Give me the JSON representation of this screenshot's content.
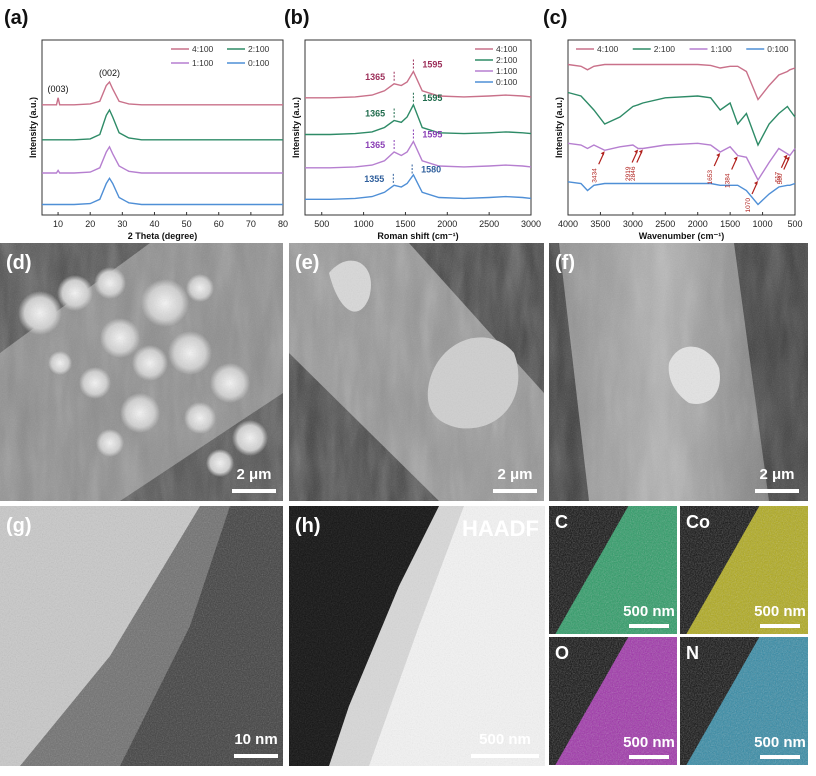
{
  "chart_data": [
    {
      "type": "line",
      "panel_label": "(a)",
      "x_label": "2 Theta (degree)",
      "y_label": "Intensity (a.u.)",
      "xlim": [
        5,
        80
      ],
      "xticks": [
        10,
        20,
        30,
        40,
        50,
        60,
        70,
        80
      ],
      "ylim": [
        0,
        100
      ],
      "legend": "upper right",
      "legend_columns": 2,
      "x": [
        5,
        8,
        9.5,
        10,
        10.5,
        12,
        15,
        20,
        23,
        25,
        26,
        27,
        29,
        32,
        36,
        40,
        50,
        60,
        70,
        80
      ],
      "series": [
        {
          "name": "4:100",
          "color": "#c9718a",
          "values": [
            63,
            63,
            63,
            67,
            63,
            63,
            63,
            63.5,
            65,
            74,
            76,
            72,
            65,
            63.5,
            63,
            63,
            63,
            63,
            63,
            63
          ]
        },
        {
          "name": "2:100",
          "color": "#2e8b67",
          "values": [
            43,
            43,
            43,
            43,
            43,
            43,
            43,
            43.5,
            46,
            57,
            60,
            56,
            47,
            44,
            43,
            43,
            43,
            43,
            43,
            43
          ]
        },
        {
          "name": "1:100",
          "color": "#b67fd0",
          "values": [
            24,
            24,
            24,
            25.5,
            24,
            24,
            24,
            24.5,
            27,
            36,
            39,
            35,
            28,
            25,
            24,
            24,
            24,
            24,
            24,
            24
          ]
        },
        {
          "name": "0:100",
          "color": "#4f8fd6",
          "values": [
            6,
            6,
            6,
            6,
            6,
            6,
            6,
            6.5,
            9,
            18,
            21,
            18,
            10,
            7,
            6,
            6,
            6,
            6,
            6,
            6
          ]
        }
      ],
      "annotations": [
        {
          "text": "(003)",
          "x": 10
        },
        {
          "text": "(002)",
          "x": 26
        }
      ]
    },
    {
      "type": "line",
      "panel_label": "(b)",
      "x_label": "Roman shift (cm⁻¹)",
      "y_label": "Intensity (a.u.)",
      "xlim": [
        300,
        3000
      ],
      "xticks": [
        500,
        1000,
        1500,
        2000,
        2500,
        3000
      ],
      "ylim": [
        0,
        100
      ],
      "legend": "upper right",
      "legend_columns": 1,
      "x": [
        300,
        600,
        900,
        1100,
        1250,
        1365,
        1450,
        1520,
        1595,
        1700,
        1900,
        2200,
        2500,
        2700,
        2900,
        3000
      ],
      "series": [
        {
          "name": "4:100",
          "color": "#c9718a",
          "values": [
            67,
            67,
            67.5,
            68.5,
            71,
            75,
            74,
            76,
            82,
            71,
            68,
            67.5,
            68,
            68.5,
            68,
            67.5
          ],
          "peak_labels": [
            {
              "text": "1365",
              "x": 1365
            },
            {
              "text": "1595",
              "x": 1595
            }
          ],
          "label_color": "#9c2f5a"
        },
        {
          "name": "2:100",
          "color": "#2e8b67",
          "values": [
            46,
            46,
            46.5,
            47.5,
            50,
            54,
            53,
            56,
            63,
            50,
            47,
            46.5,
            47,
            47.5,
            47,
            46.5
          ],
          "peak_labels": [
            {
              "text": "1365",
              "x": 1365
            },
            {
              "text": "1595",
              "x": 1595
            }
          ],
          "label_color": "#1f6b4c"
        },
        {
          "name": "1:100",
          "color": "#b67fd0",
          "values": [
            27,
            27,
            27.5,
            28.5,
            31,
            36,
            34,
            36,
            42,
            31,
            28,
            27.5,
            28,
            28.5,
            28,
            27.5
          ],
          "peak_labels": [
            {
              "text": "1365",
              "x": 1365
            },
            {
              "text": "1595",
              "x": 1595
            }
          ],
          "label_color": "#8a3fb5"
        },
        {
          "name": "0:100",
          "color": "#4f8fd6",
          "values": [
            9,
            9,
            9.5,
            10.5,
            13,
            17,
            16,
            18,
            23,
            13,
            10,
            9.5,
            10,
            10.5,
            10,
            9.5
          ],
          "peak_labels": [
            {
              "text": "1355",
              "x": 1355
            },
            {
              "text": "1580",
              "x": 1580
            }
          ],
          "label_color": "#2f5f9c"
        }
      ]
    },
    {
      "type": "line",
      "panel_label": "(c)",
      "x_label": "Wavenumber (cm⁻¹)",
      "y_label": "Intensity (a.u.)",
      "xlim": [
        4000,
        500
      ],
      "xticks": [
        4000,
        3500,
        3000,
        2500,
        2000,
        1500,
        1000,
        500
      ],
      "ylim": [
        0,
        100
      ],
      "legend": "top",
      "legend_columns": 4,
      "x": [
        4000,
        3800,
        3700,
        3600,
        3434,
        3200,
        3000,
        2919,
        2846,
        2500,
        2000,
        1800,
        1653,
        1500,
        1384,
        1250,
        1070,
        900,
        750,
        617,
        580,
        500
      ],
      "series": [
        {
          "name": "4:100",
          "color": "#c9718a",
          "values": [
            86,
            85,
            83,
            85,
            86,
            86,
            86,
            86,
            86,
            86,
            86,
            85.5,
            84,
            85,
            85,
            82,
            66,
            74,
            80,
            82,
            83,
            84
          ]
        },
        {
          "name": "2:100",
          "color": "#2e8b67",
          "values": [
            70,
            68,
            64,
            60,
            52,
            56,
            62,
            63,
            64,
            67,
            68,
            67,
            60,
            64,
            52,
            58,
            40,
            52,
            58,
            62,
            60,
            56
          ]
        },
        {
          "name": "1:100",
          "color": "#b67fd0",
          "values": [
            41,
            40,
            38,
            40,
            37,
            39,
            40,
            38,
            38,
            40,
            41,
            40,
            36,
            39,
            34,
            33,
            20,
            30,
            38,
            35,
            34,
            38
          ]
        },
        {
          "name": "0:100",
          "color": "#4f8fd6",
          "values": [
            19,
            18,
            14,
            17,
            18,
            18,
            18,
            18,
            18,
            18,
            18,
            18,
            17,
            17,
            17,
            14,
            6,
            12,
            16,
            17,
            17,
            18
          ]
        }
      ],
      "annotation_color": "#b0201c",
      "annotations": [
        {
          "text": "3434",
          "x": 3434
        },
        {
          "text": "2919",
          "x": 2919
        },
        {
          "text": "2846",
          "x": 2846
        },
        {
          "text": "1653",
          "x": 1653
        },
        {
          "text": "1384",
          "x": 1384
        },
        {
          "text": "1070",
          "x": 1070
        },
        {
          "text": "617",
          "x": 617
        },
        {
          "text": "580",
          "x": 580
        }
      ]
    }
  ],
  "images": {
    "sem": [
      {
        "label": "(d)",
        "scale": "2 μm"
      },
      {
        "label": "(e)",
        "scale": "2 μm"
      },
      {
        "label": "(f)",
        "scale": "2 μm"
      }
    ],
    "tem": [
      {
        "label": "(g)",
        "scale": "10 nm"
      },
      {
        "label": "(h)",
        "scale": "500 nm",
        "mode": "HAADF"
      }
    ],
    "maps": [
      {
        "element": "C",
        "scale": "500 nm"
      },
      {
        "element": "Co",
        "scale": "500 nm"
      },
      {
        "element": "O",
        "scale": "500 nm"
      },
      {
        "element": "N",
        "scale": "500 nm"
      }
    ]
  }
}
